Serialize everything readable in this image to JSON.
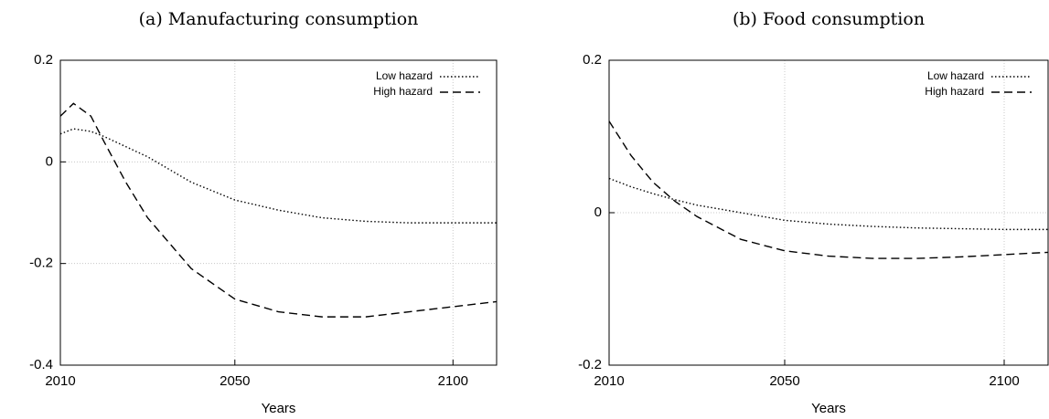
{
  "chart_data": [
    {
      "type": "line",
      "title": "(a) Manufacturing consumption",
      "xlabel": "Years",
      "x": [
        2010,
        2013,
        2017,
        2020,
        2025,
        2030,
        2040,
        2050,
        2060,
        2070,
        2080,
        2090,
        2100,
        2110
      ],
      "series": [
        {
          "name": "Low hazard",
          "color": "#000000",
          "style": "dotted",
          "values": [
            0.055,
            0.065,
            0.06,
            0.05,
            0.03,
            0.01,
            -0.04,
            -0.075,
            -0.095,
            -0.11,
            -0.117,
            -0.12,
            -0.12,
            -0.12
          ]
        },
        {
          "name": "High hazard",
          "color": "#000000",
          "style": "dashed",
          "values": [
            0.09,
            0.115,
            0.09,
            0.04,
            -0.04,
            -0.11,
            -0.21,
            -0.27,
            -0.295,
            -0.305,
            -0.305,
            -0.295,
            -0.285,
            -0.275
          ]
        }
      ],
      "xlim": [
        2010,
        2110
      ],
      "xticks": [
        2010,
        2050,
        2100
      ],
      "ylim": [
        -0.4,
        0.2
      ],
      "yticks": [
        -0.4,
        -0.2,
        0,
        0.2
      ],
      "grid": true,
      "legend": "upper right"
    },
    {
      "type": "line",
      "title": "(b) Food consumption",
      "xlabel": "Years",
      "x": [
        2010,
        2015,
        2020,
        2025,
        2030,
        2040,
        2050,
        2060,
        2070,
        2080,
        2090,
        2100,
        2110
      ],
      "series": [
        {
          "name": "Low hazard",
          "color": "#000000",
          "style": "dotted",
          "values": [
            0.045,
            0.034,
            0.025,
            0.017,
            0.01,
            0.0,
            -0.01,
            -0.015,
            -0.018,
            -0.02,
            -0.021,
            -0.022,
            -0.022
          ]
        },
        {
          "name": "High hazard",
          "color": "#000000",
          "style": "dashed",
          "values": [
            0.12,
            0.075,
            0.04,
            0.015,
            -0.005,
            -0.035,
            -0.05,
            -0.057,
            -0.06,
            -0.06,
            -0.058,
            -0.055,
            -0.052
          ]
        }
      ],
      "xlim": [
        2010,
        2110
      ],
      "xticks": [
        2010,
        2050,
        2100
      ],
      "ylim": [
        -0.2,
        0.2
      ],
      "yticks": [
        -0.2,
        0,
        0.2
      ],
      "grid": true,
      "legend": "upper right"
    }
  ]
}
